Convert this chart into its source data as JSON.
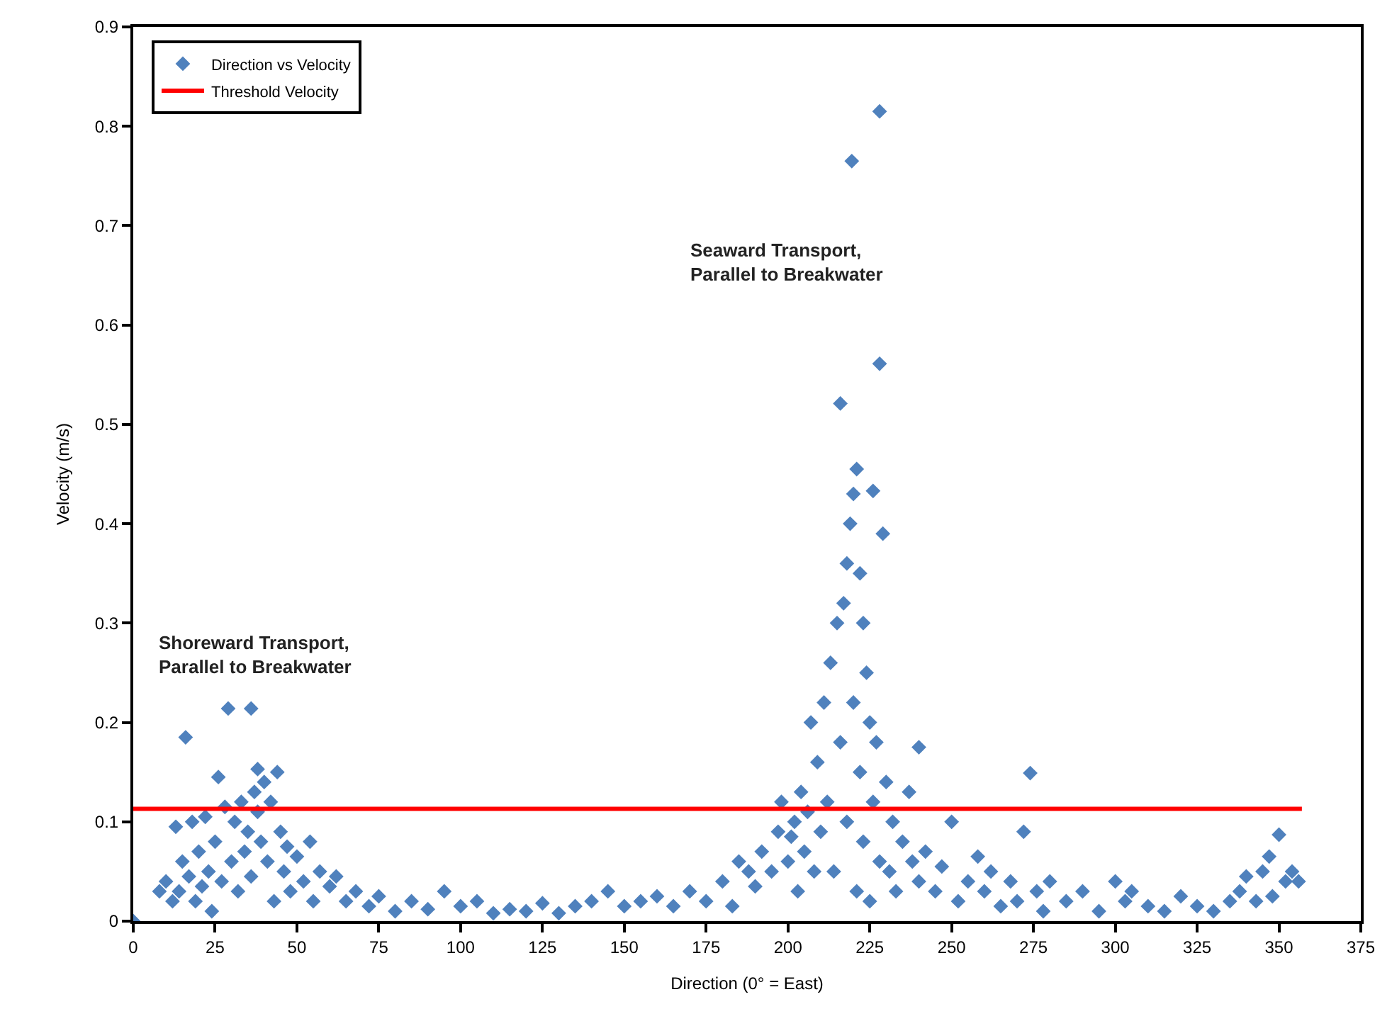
{
  "chart_data": {
    "type": "scatter",
    "xlabel": "Direction (0° = East)",
    "ylabel": "Velocity (m/s)",
    "xlim": [
      0,
      375
    ],
    "xticks": [
      0,
      25,
      50,
      75,
      100,
      125,
      150,
      175,
      200,
      225,
      250,
      275,
      300,
      325,
      350,
      375
    ],
    "ylim": [
      0,
      0.9
    ],
    "yticks": [
      0,
      0.1,
      0.2,
      0.3,
      0.4,
      0.5,
      0.6,
      0.7,
      0.8,
      0.9
    ],
    "legend": "top left",
    "marker": "diamond",
    "annotations": [
      "Shoreward Transport,\nParallel to Breakwater",
      "Seaward Transport,\nParallel to Breakwater"
    ],
    "series": [
      {
        "name": "Direction vs Velocity",
        "color": "#4f81bd",
        "x": [
          0,
          8,
          10,
          12,
          13,
          14,
          15,
          16,
          17,
          18,
          19,
          20,
          21,
          22,
          23,
          24,
          25,
          26,
          27,
          28,
          29,
          30,
          31,
          32,
          33,
          34,
          35,
          36,
          36,
          37,
          38,
          38,
          39,
          40,
          41,
          42,
          43,
          44,
          45,
          46,
          47,
          48,
          50,
          52,
          54,
          55,
          57,
          60,
          62,
          65,
          68,
          72,
          75,
          80,
          85,
          90,
          95,
          100,
          105,
          110,
          115,
          120,
          125,
          130,
          135,
          140,
          145,
          150,
          155,
          160,
          165,
          170,
          175,
          180,
          183,
          185,
          188,
          190,
          192,
          195,
          197,
          198,
          200,
          201,
          202,
          203,
          204,
          205,
          206,
          207,
          208,
          209,
          210,
          211,
          212,
          213,
          214,
          215,
          216,
          216,
          217,
          218,
          218,
          219,
          219.5,
          220,
          220,
          221,
          221,
          222,
          222,
          223,
          223,
          224,
          225,
          225,
          226,
          226,
          227,
          228,
          228,
          228,
          229,
          230,
          231,
          232,
          233,
          235,
          237,
          238,
          240,
          240,
          242,
          245,
          247,
          250,
          252,
          255,
          258,
          260,
          262,
          265,
          268,
          270,
          272,
          274,
          276,
          278,
          280,
          285,
          290,
          295,
          300,
          303,
          305,
          310,
          315,
          320,
          325,
          330,
          335,
          338,
          340,
          343,
          345,
          347,
          348,
          350,
          352,
          354,
          356
        ],
        "values": [
          0,
          0.03,
          0.04,
          0.02,
          0.095,
          0.03,
          0.06,
          0.185,
          0.045,
          0.1,
          0.02,
          0.07,
          0.035,
          0.105,
          0.05,
          0.01,
          0.08,
          0.145,
          0.04,
          0.115,
          0.214,
          0.06,
          0.1,
          0.03,
          0.12,
          0.07,
          0.09,
          0.214,
          0.045,
          0.13,
          0.153,
          0.11,
          0.08,
          0.14,
          0.06,
          0.12,
          0.02,
          0.15,
          0.09,
          0.05,
          0.075,
          0.03,
          0.065,
          0.04,
          0.08,
          0.02,
          0.05,
          0.035,
          0.045,
          0.02,
          0.03,
          0.015,
          0.025,
          0.01,
          0.02,
          0.012,
          0.03,
          0.015,
          0.02,
          0.008,
          0.012,
          0.01,
          0.018,
          0.008,
          0.015,
          0.02,
          0.03,
          0.015,
          0.02,
          0.025,
          0.015,
          0.03,
          0.02,
          0.04,
          0.015,
          0.06,
          0.05,
          0.035,
          0.07,
          0.05,
          0.09,
          0.12,
          0.06,
          0.085,
          0.1,
          0.03,
          0.13,
          0.07,
          0.11,
          0.2,
          0.05,
          0.16,
          0.09,
          0.22,
          0.12,
          0.26,
          0.05,
          0.3,
          0.521,
          0.18,
          0.32,
          0.1,
          0.36,
          0.4,
          0.765,
          0.22,
          0.43,
          0.455,
          0.03,
          0.35,
          0.15,
          0.3,
          0.08,
          0.25,
          0.2,
          0.02,
          0.433,
          0.12,
          0.18,
          0.815,
          0.561,
          0.06,
          0.39,
          0.14,
          0.05,
          0.1,
          0.03,
          0.08,
          0.13,
          0.06,
          0.175,
          0.04,
          0.07,
          0.03,
          0.055,
          0.1,
          0.02,
          0.04,
          0.065,
          0.03,
          0.05,
          0.015,
          0.04,
          0.02,
          0.09,
          0.149,
          0.03,
          0.01,
          0.04,
          0.02,
          0.03,
          0.01,
          0.04,
          0.02,
          0.03,
          0.015,
          0.01,
          0.025,
          0.015,
          0.01,
          0.02,
          0.03,
          0.045,
          0.02,
          0.05,
          0.065,
          0.025,
          0.087,
          0.04,
          0.05,
          0.04
        ]
      },
      {
        "name": "Threshold Velocity",
        "type": "line",
        "color": "#ff0000",
        "x": [
          0,
          357
        ],
        "values": [
          0.113,
          0.113
        ],
        "marker": "none"
      }
    ]
  }
}
